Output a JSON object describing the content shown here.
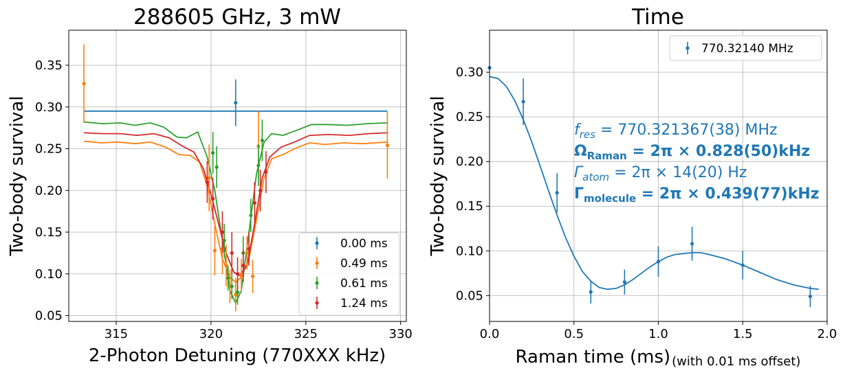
{
  "chart_data": [
    {
      "type": "scatter",
      "title": "288605 GHz, 3 mW",
      "xlabel": "2-Photon Detuning (770XXX kHz)",
      "ylabel": "Two-body survival",
      "xlim": [
        312.5,
        330.3
      ],
      "ylim": [
        0.043,
        0.392
      ],
      "x_ticks": [
        315,
        320,
        325,
        330
      ],
      "x_tick_labels": [
        "315",
        "320",
        "325",
        "330"
      ],
      "y_ticks": [
        0.05,
        0.1,
        0.15,
        0.2,
        0.25,
        0.3,
        0.35
      ],
      "y_tick_labels": [
        "0.05",
        "0.10",
        "0.15",
        "0.20",
        "0.25",
        "0.30",
        "0.35"
      ],
      "grid": true,
      "legend_position": "lower-right",
      "series": [
        {
          "name": "0.00 ms",
          "color": "#1f77b4",
          "points": [
            {
              "x": 321.3,
              "y": 0.305,
              "err": 0.028
            }
          ],
          "fit": [
            [
              313.3,
              0.295
            ],
            [
              329.3,
              0.295
            ]
          ]
        },
        {
          "name": "0.49 ms",
          "color": "#ff7f0e",
          "points": [
            {
              "x": 313.3,
              "y": 0.328,
              "err": 0.047
            },
            {
              "x": 319.9,
              "y": 0.215,
              "err": 0.04
            },
            {
              "x": 320.2,
              "y": 0.128,
              "err": 0.03
            },
            {
              "x": 320.6,
              "y": 0.13,
              "err": 0.03
            },
            {
              "x": 320.8,
              "y": 0.11,
              "err": 0.025
            },
            {
              "x": 321.0,
              "y": 0.085,
              "err": 0.02
            },
            {
              "x": 321.3,
              "y": 0.075,
              "err": 0.02
            },
            {
              "x": 321.6,
              "y": 0.098,
              "err": 0.02
            },
            {
              "x": 321.9,
              "y": 0.125,
              "err": 0.02
            },
            {
              "x": 322.2,
              "y": 0.097,
              "err": 0.02
            },
            {
              "x": 322.5,
              "y": 0.253,
              "err": 0.042
            },
            {
              "x": 329.3,
              "y": 0.254,
              "err": 0.04
            }
          ],
          "fit": [
            [
              313.3,
              0.259
            ],
            [
              314.2,
              0.257
            ],
            [
              315.1,
              0.258
            ],
            [
              316.0,
              0.256
            ],
            [
              316.8,
              0.258
            ],
            [
              317.6,
              0.252
            ],
            [
              318.3,
              0.243
            ],
            [
              318.9,
              0.242
            ],
            [
              319.4,
              0.234
            ],
            [
              319.8,
              0.205
            ],
            [
              320.2,
              0.16
            ],
            [
              320.6,
              0.118
            ],
            [
              321.0,
              0.096
            ],
            [
              321.3,
              0.09
            ],
            [
              321.6,
              0.096
            ],
            [
              322.0,
              0.118
            ],
            [
              322.4,
              0.165
            ],
            [
              322.8,
              0.215
            ],
            [
              323.2,
              0.238
            ],
            [
              323.8,
              0.243
            ],
            [
              324.5,
              0.251
            ],
            [
              325.2,
              0.257
            ],
            [
              326.0,
              0.255
            ],
            [
              327.0,
              0.257
            ],
            [
              328.0,
              0.256
            ],
            [
              329.3,
              0.258
            ]
          ]
        },
        {
          "name": "0.61 ms",
          "color": "#2ca02c",
          "points": [
            {
              "x": 320.1,
              "y": 0.245,
              "err": 0.025
            },
            {
              "x": 320.3,
              "y": 0.228,
              "err": 0.025
            },
            {
              "x": 320.7,
              "y": 0.14,
              "err": 0.02
            },
            {
              "x": 320.9,
              "y": 0.095,
              "err": 0.015
            },
            {
              "x": 321.1,
              "y": 0.085,
              "err": 0.015
            },
            {
              "x": 321.4,
              "y": 0.078,
              "err": 0.015
            },
            {
              "x": 321.7,
              "y": 0.125,
              "err": 0.02
            },
            {
              "x": 322.1,
              "y": 0.17,
              "err": 0.02
            },
            {
              "x": 322.5,
              "y": 0.23,
              "err": 0.025
            },
            {
              "x": 322.7,
              "y": 0.26,
              "err": 0.025
            }
          ],
          "fit": [
            [
              313.3,
              0.282
            ],
            [
              314.3,
              0.28
            ],
            [
              315.2,
              0.281
            ],
            [
              316.0,
              0.278
            ],
            [
              316.8,
              0.281
            ],
            [
              317.5,
              0.276
            ],
            [
              318.2,
              0.264
            ],
            [
              318.7,
              0.263
            ],
            [
              319.3,
              0.27
            ],
            [
              319.8,
              0.24
            ],
            [
              320.2,
              0.2
            ],
            [
              320.6,
              0.14
            ],
            [
              321.0,
              0.08
            ],
            [
              321.3,
              0.065
            ],
            [
              321.6,
              0.08
            ],
            [
              322.0,
              0.15
            ],
            [
              322.4,
              0.22
            ],
            [
              322.8,
              0.258
            ],
            [
              323.2,
              0.268
            ],
            [
              323.8,
              0.266
            ],
            [
              324.5,
              0.272
            ],
            [
              325.3,
              0.279
            ],
            [
              326.2,
              0.279
            ],
            [
              327.2,
              0.278
            ],
            [
              328.2,
              0.28
            ],
            [
              329.3,
              0.281
            ]
          ]
        },
        {
          "name": "1.24 ms",
          "color": "#d62728",
          "points": [
            {
              "x": 319.8,
              "y": 0.21,
              "err": 0.025
            },
            {
              "x": 320.1,
              "y": 0.19,
              "err": 0.025
            },
            {
              "x": 320.6,
              "y": 0.15,
              "err": 0.025
            },
            {
              "x": 321.1,
              "y": 0.125,
              "err": 0.025
            },
            {
              "x": 321.4,
              "y": 0.1,
              "err": 0.02
            },
            {
              "x": 321.7,
              "y": 0.11,
              "err": 0.02
            },
            {
              "x": 322.0,
              "y": 0.13,
              "err": 0.02
            },
            {
              "x": 322.3,
              "y": 0.185,
              "err": 0.025
            },
            {
              "x": 322.6,
              "y": 0.2,
              "err": 0.025
            },
            {
              "x": 322.9,
              "y": 0.222,
              "err": 0.025
            }
          ],
          "fit": [
            [
              313.3,
              0.269
            ],
            [
              314.3,
              0.268
            ],
            [
              315.2,
              0.268
            ],
            [
              316.1,
              0.266
            ],
            [
              317.0,
              0.268
            ],
            [
              317.8,
              0.263
            ],
            [
              318.5,
              0.253
            ],
            [
              319.1,
              0.246
            ],
            [
              319.6,
              0.226
            ],
            [
              320.0,
              0.195
            ],
            [
              320.4,
              0.16
            ],
            [
              320.8,
              0.125
            ],
            [
              321.2,
              0.102
            ],
            [
              321.5,
              0.098
            ],
            [
              321.9,
              0.11
            ],
            [
              322.3,
              0.16
            ],
            [
              322.7,
              0.215
            ],
            [
              323.1,
              0.24
            ],
            [
              323.7,
              0.252
            ],
            [
              324.4,
              0.258
            ],
            [
              325.2,
              0.266
            ],
            [
              326.2,
              0.267
            ],
            [
              327.3,
              0.266
            ],
            [
              328.3,
              0.268
            ],
            [
              329.3,
              0.269
            ]
          ]
        }
      ]
    },
    {
      "type": "scatter",
      "title": "Time",
      "xlabel": "Raman time (ms)",
      "xlabel_note": "(with 0.01 ms offset)",
      "ylabel": "Two-body survival",
      "xlim": [
        0.0,
        2.0
      ],
      "ylim": [
        0.021,
        0.347
      ],
      "x_ticks": [
        0.0,
        0.5,
        1.0,
        1.5,
        2.0
      ],
      "x_tick_labels": [
        "0.0",
        "0.5",
        "1.0",
        "1.5",
        "2.0"
      ],
      "y_ticks": [
        0.05,
        0.1,
        0.15,
        0.2,
        0.25,
        0.3
      ],
      "y_tick_labels": [
        "0.05",
        "0.10",
        "0.15",
        "0.20",
        "0.25",
        "0.30"
      ],
      "grid": true,
      "legend_position": "top-right",
      "series": [
        {
          "name": "770.32140 MHz",
          "color": "#1f77b4",
          "points": [
            {
              "x": 0.0,
              "y": 0.305,
              "err": 0.0
            },
            {
              "x": 0.2,
              "y": 0.267,
              "err": 0.026
            },
            {
              "x": 0.4,
              "y": 0.165,
              "err": 0.022
            },
            {
              "x": 0.6,
              "y": 0.054,
              "err": 0.013
            },
            {
              "x": 0.8,
              "y": 0.065,
              "err": 0.014
            },
            {
              "x": 1.0,
              "y": 0.088,
              "err": 0.017
            },
            {
              "x": 1.2,
              "y": 0.108,
              "err": 0.019
            },
            {
              "x": 1.5,
              "y": 0.084,
              "err": 0.016
            },
            {
              "x": 1.9,
              "y": 0.049,
              "err": 0.012
            }
          ],
          "fit": [
            [
              0.0,
              0.295
            ],
            [
              0.05,
              0.293
            ],
            [
              0.1,
              0.284
            ],
            [
              0.15,
              0.268
            ],
            [
              0.2,
              0.247
            ],
            [
              0.25,
              0.222
            ],
            [
              0.3,
              0.195
            ],
            [
              0.35,
              0.167
            ],
            [
              0.4,
              0.14
            ],
            [
              0.45,
              0.115
            ],
            [
              0.5,
              0.094
            ],
            [
              0.55,
              0.077
            ],
            [
              0.6,
              0.066
            ],
            [
              0.65,
              0.059
            ],
            [
              0.7,
              0.057
            ],
            [
              0.75,
              0.058
            ],
            [
              0.8,
              0.062
            ],
            [
              0.85,
              0.068
            ],
            [
              0.9,
              0.075
            ],
            [
              0.95,
              0.082
            ],
            [
              1.0,
              0.088
            ],
            [
              1.05,
              0.093
            ],
            [
              1.1,
              0.096
            ],
            [
              1.15,
              0.097
            ],
            [
              1.2,
              0.098
            ],
            [
              1.25,
              0.098
            ],
            [
              1.3,
              0.096
            ],
            [
              1.4,
              0.091
            ],
            [
              1.5,
              0.084
            ],
            [
              1.6,
              0.076
            ],
            [
              1.7,
              0.068
            ],
            [
              1.8,
              0.062
            ],
            [
              1.9,
              0.058
            ],
            [
              1.95,
              0.057
            ]
          ]
        }
      ],
      "annotations": [
        {
          "kind": "math",
          "var": "f",
          "sub": "res",
          "text": " = 770.321367(38) MHz",
          "bold": false
        },
        {
          "kind": "bold",
          "var": "Ω",
          "sub": "Raman",
          "text": " = 2π × 0.828(50)kHz",
          "bold": true
        },
        {
          "kind": "math",
          "var": "Γ",
          "sub": "atom",
          "text": " = 2π × 14(20) Hz",
          "bold": false
        },
        {
          "kind": "bold",
          "var": "Γ",
          "sub": "molecule",
          "text": " = 2π × 0.439(77)kHz",
          "bold": true
        }
      ]
    }
  ]
}
